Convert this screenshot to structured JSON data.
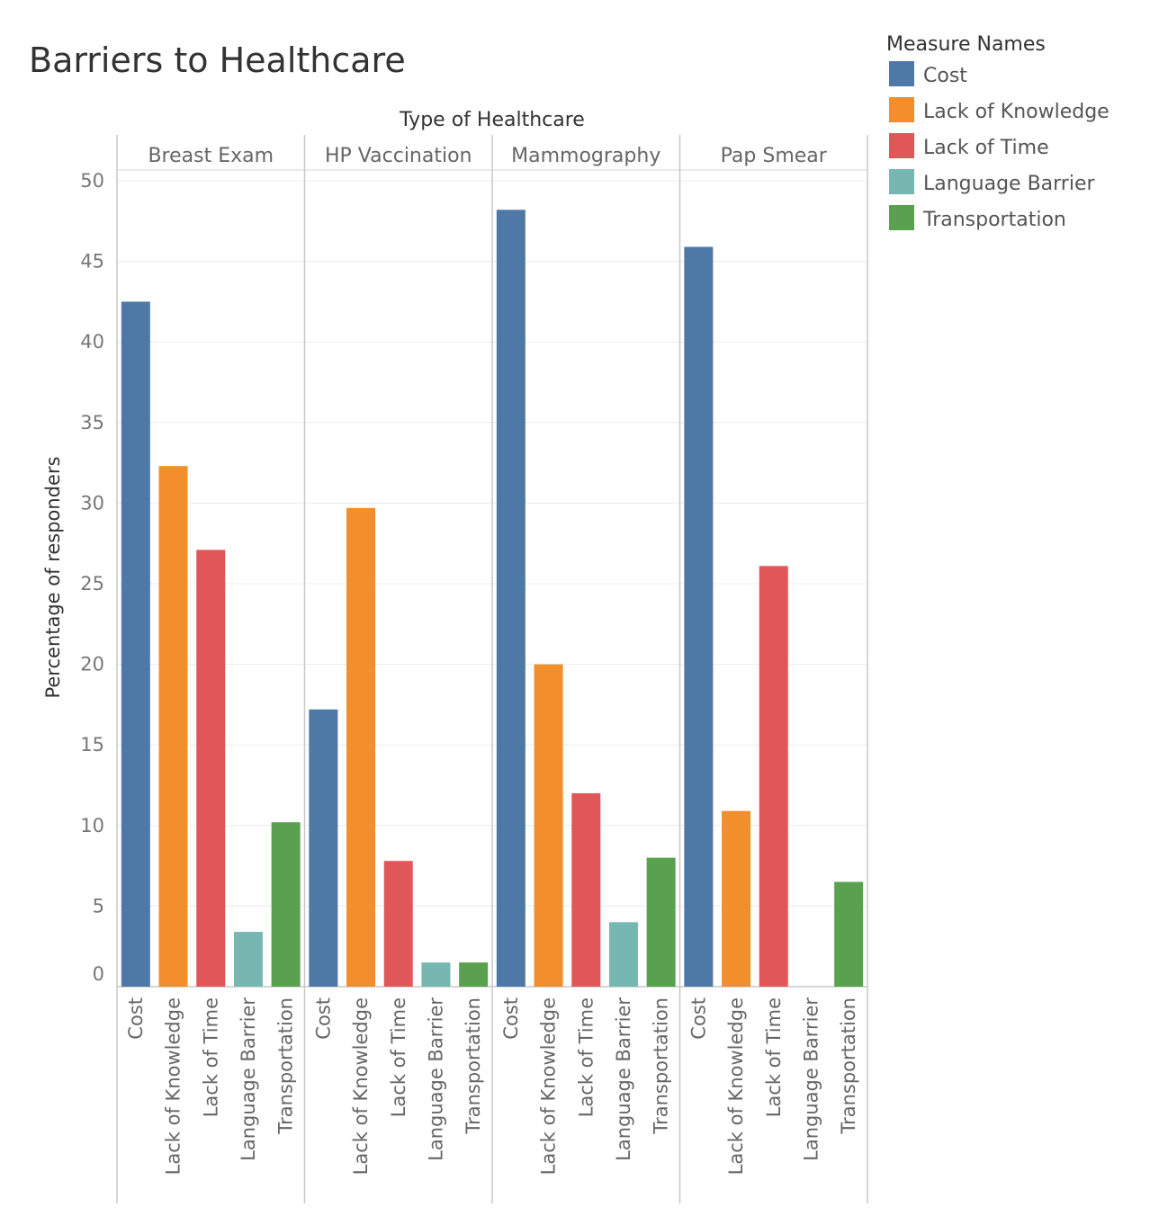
{
  "chart_data": {
    "type": "bar",
    "title": "Barriers to Healthcare",
    "column_header": "Type of Healthcare",
    "ylabel": "Percentage of responders",
    "ylim": [
      0,
      50
    ],
    "yticks": [
      0,
      5,
      10,
      15,
      20,
      25,
      30,
      35,
      40,
      45,
      50
    ],
    "grid": true,
    "legend_title": "Measure Names",
    "legend_position": "top-right",
    "categories": [
      "Cost",
      "Lack of Knowledge",
      "Lack of Time",
      "Language Barrier",
      "Transportation"
    ],
    "colors": [
      "#4e79a7",
      "#f28e2b",
      "#e15759",
      "#76b7b2",
      "#59a14f"
    ],
    "panels": [
      {
        "name": "Breast Exam",
        "values": [
          42.5,
          32.3,
          27.1,
          3.4,
          10.2
        ]
      },
      {
        "name": "HP Vaccination",
        "values": [
          17.2,
          29.7,
          7.8,
          1.5,
          1.5
        ]
      },
      {
        "name": "Mammography",
        "values": [
          48.2,
          20.0,
          12.0,
          4.0,
          8.0
        ]
      },
      {
        "name": "Pap Smear",
        "values": [
          45.9,
          10.9,
          26.1,
          0,
          6.5
        ]
      }
    ]
  }
}
